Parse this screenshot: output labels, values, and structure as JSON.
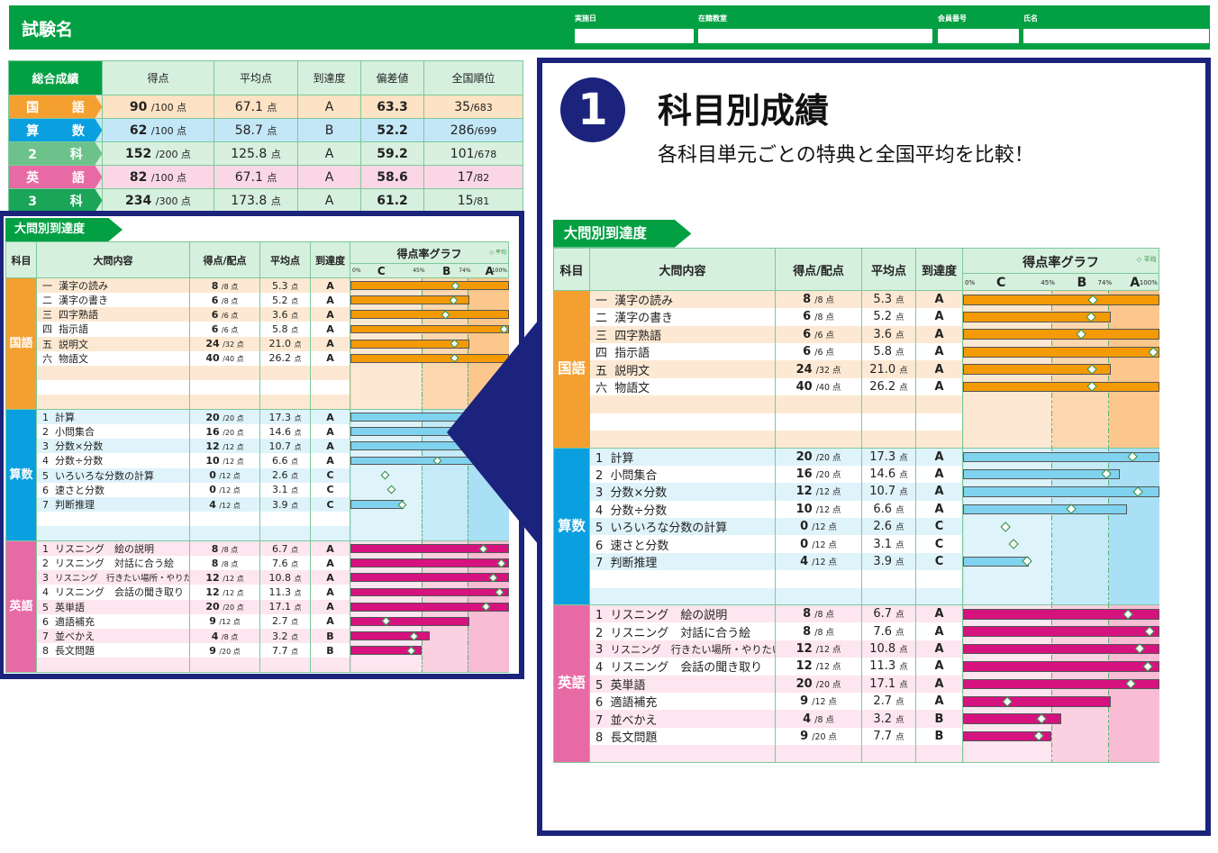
{
  "header": {
    "title": "試験名",
    "fields": [
      "実施日",
      "在籍教室",
      "会員番号",
      "氏名"
    ]
  },
  "summary": {
    "caption": "総合成績",
    "columns": [
      "得点",
      "平均点",
      "到達度",
      "偏差値",
      "全国順位"
    ],
    "rows": [
      {
        "subject": "国 語",
        "score": "90",
        "max": "/100 点",
        "avg": "67.1",
        "avg_unit": "点",
        "level": "A",
        "dev": "63.3",
        "rank": "35",
        "rank_total": "/683",
        "color": "#f4a030",
        "bg": "#fde2c3"
      },
      {
        "subject": "算 数",
        "score": "62",
        "max": "/100 点",
        "avg": "58.7",
        "avg_unit": "点",
        "level": "B",
        "dev": "52.2",
        "rank": "286",
        "rank_total": "/699",
        "color": "#0aa0e0",
        "bg": "#c3e7f7"
      },
      {
        "subject": "2 科",
        "score": "152",
        "max": "/200 点",
        "avg": "125.8",
        "avg_unit": "点",
        "level": "A",
        "dev": "59.2",
        "rank": "101",
        "rank_total": "/678",
        "color": "#6cc28a",
        "bg": "#d9f0de"
      },
      {
        "subject": "英 語",
        "score": "82",
        "max": "/100 点",
        "avg": "67.1",
        "avg_unit": "点",
        "level": "A",
        "dev": "58.6",
        "rank": "17",
        "rank_total": "/82",
        "color": "#e86aa5",
        "bg": "#fbd7e6"
      },
      {
        "subject": "3 科",
        "score": "234",
        "max": "/300 点",
        "avg": "173.8",
        "avg_unit": "点",
        "level": "A",
        "dev": "61.2",
        "rank": "15",
        "rank_total": "/81",
        "color": "#1aa558",
        "bg": "#d6f0de"
      }
    ]
  },
  "detail": {
    "tab": "大問別到達度",
    "columns": {
      "subject": "科目",
      "content": "大問内容",
      "score": "得点/配点",
      "avg": "平均点",
      "level": "到達度",
      "graph": "得点率グラフ",
      "legend": "◇ 平均"
    },
    "scale": {
      "p0": "0%",
      "p45": "45%",
      "p74": "74%",
      "p100": "100%",
      "C": "C",
      "B": "B",
      "A": "A"
    },
    "subjects": [
      {
        "name": "国語",
        "color": "#f4a030",
        "bar": "#f39a05",
        "bg_c": "#fde9d3",
        "bg_b": "#fcd7b0",
        "bg_a": "#fbc78d",
        "empty": 3,
        "items": [
          {
            "no": "一",
            "name": "漢字の読み",
            "score": "8",
            "max": "/8 点",
            "avg": "5.3",
            "rate": 1.0,
            "avg_rate": 0.663,
            "level": "A"
          },
          {
            "no": "二",
            "name": "漢字の書き",
            "score": "6",
            "max": "/8 点",
            "avg": "5.2",
            "rate": 0.75,
            "avg_rate": 0.65,
            "level": "A"
          },
          {
            "no": "三",
            "name": "四字熟語",
            "score": "6",
            "max": "/6 点",
            "avg": "3.6",
            "rate": 1.0,
            "avg_rate": 0.6,
            "level": "A"
          },
          {
            "no": "四",
            "name": "指示語",
            "score": "6",
            "max": "/6 点",
            "avg": "5.8",
            "rate": 1.0,
            "avg_rate": 0.967,
            "level": "A"
          },
          {
            "no": "五",
            "name": "説明文",
            "score": "24",
            "max": "/32 点",
            "avg": "21.0",
            "rate": 0.75,
            "avg_rate": 0.656,
            "level": "A"
          },
          {
            "no": "六",
            "name": "物語文",
            "score": "40",
            "max": "/40 点",
            "avg": "26.2",
            "rate": 1.0,
            "avg_rate": 0.655,
            "level": "A"
          }
        ]
      },
      {
        "name": "算数",
        "color": "#0aa0e0",
        "bar": "#7fd3ee",
        "bg_c": "#dff3fb",
        "bg_b": "#c5eaf8",
        "bg_a": "#a9e0f5",
        "empty": 2,
        "items": [
          {
            "no": "1",
            "name": "計算",
            "score": "20",
            "max": "/20 点",
            "avg": "17.3",
            "rate": 1.0,
            "avg_rate": 0.865,
            "level": "A"
          },
          {
            "no": "2",
            "name": "小問集合",
            "score": "16",
            "max": "/20 点",
            "avg": "14.6",
            "rate": 0.8,
            "avg_rate": 0.73,
            "level": "A"
          },
          {
            "no": "3",
            "name": "分数×分数",
            "score": "12",
            "max": "/12 点",
            "avg": "10.7",
            "rate": 1.0,
            "avg_rate": 0.892,
            "level": "A"
          },
          {
            "no": "4",
            "name": "分数÷分数",
            "score": "10",
            "max": "/12 点",
            "avg": "6.6",
            "rate": 0.833,
            "avg_rate": 0.55,
            "level": "A"
          },
          {
            "no": "5",
            "name": "いろいろな分数の計算",
            "score": "0",
            "max": "/12 点",
            "avg": "2.6",
            "rate": 0.0,
            "avg_rate": 0.217,
            "level": "C"
          },
          {
            "no": "6",
            "name": "速さと分数",
            "score": "0",
            "max": "/12 点",
            "avg": "3.1",
            "rate": 0.0,
            "avg_rate": 0.258,
            "level": "C"
          },
          {
            "no": "7",
            "name": "判断推理",
            "score": "4",
            "max": "/12 点",
            "avg": "3.9",
            "rate": 0.333,
            "avg_rate": 0.325,
            "level": "C"
          }
        ]
      },
      {
        "name": "英語",
        "color": "#e86aa5",
        "bar": "#d6127f",
        "bg_c": "#fde6ef",
        "bg_b": "#fbd1e1",
        "bg_a": "#f8bcd4",
        "empty": 1,
        "items": [
          {
            "no": "1",
            "name": "リスニング　絵の説明",
            "score": "8",
            "max": "/8 点",
            "avg": "6.7",
            "rate": 1.0,
            "avg_rate": 0.838,
            "level": "A"
          },
          {
            "no": "2",
            "name": "リスニング　対話に合う絵",
            "score": "8",
            "max": "/8 点",
            "avg": "7.6",
            "rate": 1.0,
            "avg_rate": 0.95,
            "level": "A"
          },
          {
            "no": "3",
            "name": "リスニング　行きたい場所・やりたいこと",
            "score": "12",
            "max": "/12 点",
            "avg": "10.8",
            "rate": 1.0,
            "avg_rate": 0.9,
            "level": "A"
          },
          {
            "no": "4",
            "name": "リスニング　会話の聞き取り",
            "score": "12",
            "max": "/12 点",
            "avg": "11.3",
            "rate": 1.0,
            "avg_rate": 0.942,
            "level": "A"
          },
          {
            "no": "5",
            "name": "英単語",
            "score": "20",
            "max": "/20 点",
            "avg": "17.1",
            "rate": 1.0,
            "avg_rate": 0.855,
            "level": "A"
          },
          {
            "no": "6",
            "name": "適語補充",
            "score": "9",
            "max": "/12 点",
            "avg": "2.7",
            "rate": 0.75,
            "avg_rate": 0.225,
            "level": "A"
          },
          {
            "no": "7",
            "name": "並べかえ",
            "score": "4",
            "max": "/8 点",
            "avg": "3.2",
            "rate": 0.5,
            "avg_rate": 0.4,
            "level": "B"
          },
          {
            "no": "8",
            "name": "長文問題",
            "score": "9",
            "max": "/20 点",
            "avg": "7.7",
            "rate": 0.45,
            "avg_rate": 0.385,
            "level": "B"
          }
        ]
      }
    ]
  },
  "callout": {
    "number": "1",
    "title": "科目別成績",
    "subtitle": "各科目単元ごとの特典と全国平均を比較！",
    "frame_color": "#1b237c"
  },
  "units": {
    "point": "点"
  }
}
